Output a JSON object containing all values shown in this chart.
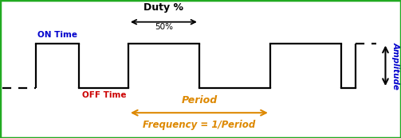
{
  "bg_color": "#ffffff",
  "border_color": "#22aa22",
  "pwm_signal_color": "#000000",
  "duty_arrow_color": "#000000",
  "period_arrow_color": "#dd8800",
  "amplitude_arrow_color": "#000000",
  "amplitude_text_color": "#0000cc",
  "frequency_text_color": "#dd8800",
  "on_time_color": "#0000cc",
  "off_time_color": "#cc0000",
  "duty_text_color": "#000000",
  "title": "Duty %",
  "duty_percent": "50%",
  "on_time_label": "ON Time",
  "off_time_label": "OFF Time",
  "period_label": "Period",
  "frequency_label": "Frequency = 1/Period",
  "amplitude_label": "Amplitude",
  "xlim": [
    0,
    11.2
  ],
  "ylim": [
    -2.2,
    3.8
  ],
  "low": 0.0,
  "high": 2.0,
  "lw": 1.6
}
